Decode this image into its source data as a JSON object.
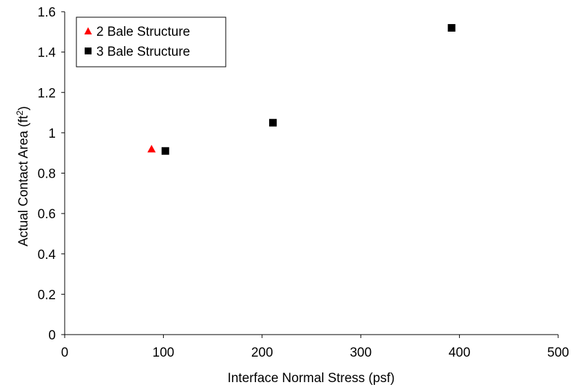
{
  "chart_data": {
    "type": "scatter",
    "xlabel": "Interface Normal Stress (psf)",
    "ylabel": {
      "prefix": "Actual Contact Area (ft",
      "sup": "2",
      "suffix": ")"
    },
    "xlim": [
      0,
      500
    ],
    "ylim": [
      0,
      1.6
    ],
    "xticks": [
      "0",
      "100",
      "200",
      "300",
      "400",
      "500"
    ],
    "yticks": [
      "0",
      "0.2",
      "0.4",
      "0.6",
      "0.8",
      "1",
      "1.2",
      "1.4",
      "1.6"
    ],
    "grid": false,
    "legend_position": "top-left",
    "series": [
      {
        "name": "2 Bale Structure",
        "marker": "triangle",
        "color": "#ff0000",
        "points": [
          {
            "x": 88,
            "y": 0.92
          }
        ]
      },
      {
        "name": "3 Bale Structure",
        "marker": "square",
        "color": "#000000",
        "points": [
          {
            "x": 102,
            "y": 0.91
          },
          {
            "x": 211,
            "y": 1.05
          },
          {
            "x": 392,
            "y": 1.52
          }
        ]
      }
    ]
  }
}
